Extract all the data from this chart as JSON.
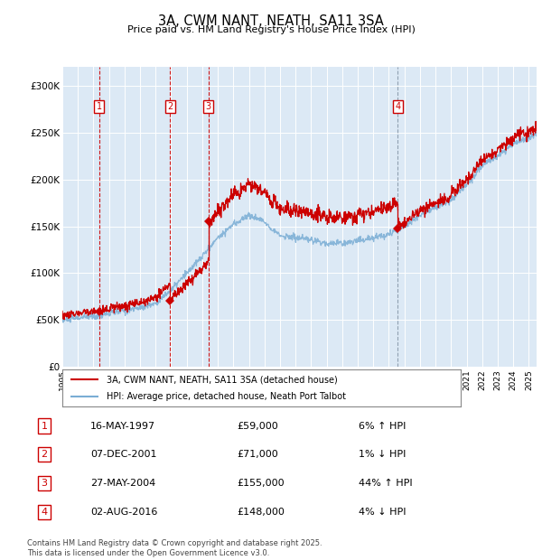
{
  "title": "3A, CWM NANT, NEATH, SA11 3SA",
  "subtitle": "Price paid vs. HM Land Registry's House Price Index (HPI)",
  "ylim": [
    0,
    320000
  ],
  "yticks": [
    0,
    50000,
    100000,
    150000,
    200000,
    250000,
    300000
  ],
  "ytick_labels": [
    "£0",
    "£50K",
    "£100K",
    "£150K",
    "£200K",
    "£250K",
    "£300K"
  ],
  "xlim_start": 1995.0,
  "xlim_end": 2025.5,
  "plot_bg_color": "#dce9f5",
  "grid_color": "#ffffff",
  "sale_color": "#cc0000",
  "hpi_color": "#7aadd4",
  "transactions": [
    {
      "num": 1,
      "date_x": 1997.37,
      "price": 59000,
      "label": "1",
      "date_str": "16-MAY-1997",
      "price_str": "£59,000",
      "hpi_pct": "6% ↑ HPI",
      "vline_color": "#cc0000",
      "vline_style": "--"
    },
    {
      "num": 2,
      "date_x": 2001.93,
      "price": 71000,
      "label": "2",
      "date_str": "07-DEC-2001",
      "price_str": "£71,000",
      "hpi_pct": "1% ↓ HPI",
      "vline_color": "#cc0000",
      "vline_style": "--"
    },
    {
      "num": 3,
      "date_x": 2004.4,
      "price": 155000,
      "label": "3",
      "date_str": "27-MAY-2004",
      "price_str": "£155,000",
      "hpi_pct": "44% ↑ HPI",
      "vline_color": "#cc0000",
      "vline_style": "--"
    },
    {
      "num": 4,
      "date_x": 2016.58,
      "price": 148000,
      "label": "4",
      "date_str": "02-AUG-2016",
      "price_str": "£148,000",
      "hpi_pct": "4% ↓ HPI",
      "vline_color": "#8899aa",
      "vline_style": "--"
    }
  ],
  "legend_sale_label": "3A, CWM NANT, NEATH, SA11 3SA (detached house)",
  "legend_hpi_label": "HPI: Average price, detached house, Neath Port Talbot",
  "footer": "Contains HM Land Registry data © Crown copyright and database right 2025.\nThis data is licensed under the Open Government Licence v3.0.",
  "table_rows": [
    [
      "1",
      "16-MAY-1997",
      "£59,000",
      "6% ↑ HPI"
    ],
    [
      "2",
      "07-DEC-2001",
      "£71,000",
      "1% ↓ HPI"
    ],
    [
      "3",
      "27-MAY-2004",
      "£155,000",
      "44% ↑ HPI"
    ],
    [
      "4",
      "02-AUG-2016",
      "£148,000",
      "4% ↓ HPI"
    ]
  ]
}
